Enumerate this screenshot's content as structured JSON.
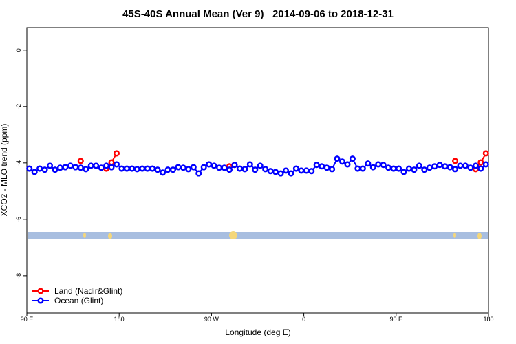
{
  "chart_data": {
    "type": "line",
    "title": "45S-40S Annual Mean (Ver 9)   2014-09-06 to 2018-12-31",
    "x_label": "Longitude (deg E)",
    "y_label": "XCO2 - MLO trend (ppm)",
    "x": [
      92.5,
      97.5,
      102.5,
      107.5,
      112.5,
      117.5,
      122.5,
      127.5,
      132.5,
      137.5,
      142.5,
      147.5,
      152.5,
      157.5,
      162.5,
      167.5,
      172.5,
      177.5,
      182.5,
      187.5,
      192.5,
      197.5,
      202.5,
      207.5,
      212.5,
      217.5,
      222.5,
      227.5,
      232.5,
      237.5,
      242.5,
      247.5,
      252.5,
      257.5,
      262.5,
      267.5,
      272.5,
      277.5,
      282.5,
      287.5,
      292.5,
      297.5,
      302.5,
      307.5,
      312.5,
      317.5,
      322.5,
      327.5,
      332.5,
      337.5,
      342.5,
      347.5,
      352.5,
      357.5,
      362.5,
      367.5,
      372.5,
      377.5,
      382.5,
      387.5,
      392.5,
      397.5,
      402.5,
      407.5,
      412.5,
      417.5,
      422.5,
      427.5,
      432.5,
      437.5,
      442.5,
      447.5,
      452.5,
      457.5,
      462.5,
      467.5,
      472.5,
      477.5,
      482.5,
      487.5,
      492.5,
      497.5,
      502.5,
      507.5,
      512.5,
      517.5,
      522.5,
      527.5,
      532.5,
      537.5
    ],
    "series": [
      {
        "name": "Land (Nadir&Glint)",
        "color": "#ff0000",
        "values": [
          null,
          null,
          null,
          null,
          null,
          null,
          null,
          null,
          null,
          null,
          -3.93,
          null,
          null,
          null,
          null,
          -4.2,
          -3.98,
          -3.66,
          null,
          null,
          null,
          null,
          null,
          null,
          null,
          null,
          null,
          null,
          null,
          null,
          null,
          null,
          null,
          null,
          null,
          null,
          null,
          null,
          null,
          -4.12,
          -4.07,
          null,
          null,
          null,
          null,
          null,
          null,
          null,
          null,
          null,
          null,
          null,
          null,
          null,
          null,
          null,
          null,
          null,
          null,
          null,
          null,
          null,
          null,
          null,
          null,
          null,
          null,
          null,
          null,
          null,
          null,
          null,
          null,
          null,
          null,
          null,
          null,
          null,
          null,
          null,
          null,
          null,
          null,
          -3.93,
          null,
          null,
          null,
          -4.22,
          -3.98,
          -3.66
        ]
      },
      {
        "name": "Ocean (Glint)",
        "color": "#0000ff",
        "values": [
          -4.2,
          -4.32,
          -4.2,
          -4.24,
          -4.1,
          -4.24,
          -4.17,
          -4.15,
          -4.1,
          -4.15,
          -4.17,
          -4.22,
          -4.1,
          -4.1,
          -4.17,
          -4.1,
          -4.15,
          -4.05,
          -4.2,
          -4.2,
          -4.2,
          -4.22,
          -4.2,
          -4.2,
          -4.2,
          -4.24,
          -4.34,
          -4.24,
          -4.24,
          -4.15,
          -4.17,
          -4.22,
          -4.15,
          -4.37,
          -4.15,
          -4.05,
          -4.1,
          -4.17,
          -4.17,
          -4.24,
          -4.07,
          -4.2,
          -4.22,
          -4.05,
          -4.24,
          -4.1,
          -4.22,
          -4.29,
          -4.32,
          -4.37,
          -4.27,
          -4.37,
          -4.2,
          -4.27,
          -4.27,
          -4.29,
          -4.07,
          -4.12,
          -4.17,
          -4.22,
          -3.85,
          -3.95,
          -4.05,
          -3.85,
          -4.2,
          -4.2,
          -4.02,
          -4.15,
          -4.05,
          -4.07,
          -4.17,
          -4.2,
          -4.2,
          -4.32,
          -4.2,
          -4.24,
          -4.1,
          -4.24,
          -4.17,
          -4.12,
          -4.07,
          -4.12,
          -4.15,
          -4.22,
          -4.1,
          -4.1,
          -4.17,
          -4.1,
          -4.2,
          -4.05
        ]
      }
    ],
    "xlim": [
      90,
      540
    ],
    "xticks": [
      {
        "value": 90,
        "label": "90 E"
      },
      180,
      {
        "value": 270,
        "label": "90 W"
      },
      {
        "value": 360,
        "label": "0"
      },
      {
        "value": 450,
        "label": "90 E"
      },
      {
        "value": 540,
        "label": "180"
      }
    ],
    "ylim": [
      -9.32,
      0.8
    ],
    "yticks": [
      0,
      -2,
      -4,
      -6,
      -8
    ],
    "grid": false,
    "legend": "bottomleft"
  }
}
